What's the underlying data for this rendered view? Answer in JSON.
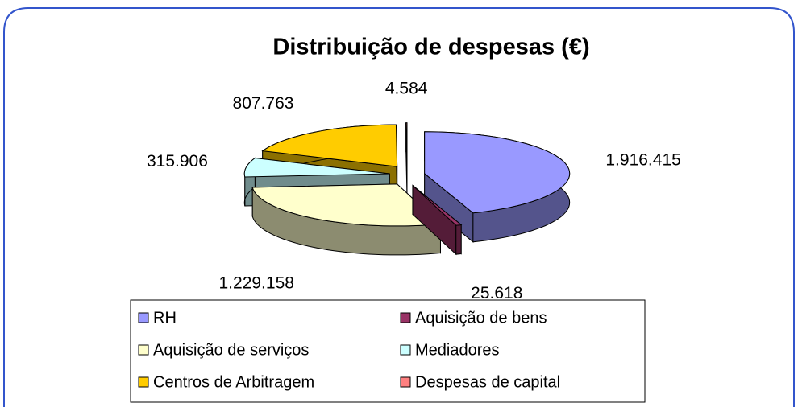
{
  "chart_data": {
    "type": "pie3d",
    "title": "Distribuição de despesas (€)",
    "categories": [
      "RH",
      "Aquisição de bens",
      "Aquisição de serviços",
      "Mediadores",
      "Centros de Arbitragem",
      "Despesas de capital"
    ],
    "values": [
      1916415,
      25618,
      1229158,
      315906,
      807763,
      4584
    ],
    "value_labels": [
      "1.916.415",
      "25.618",
      "1.229.158",
      "315.906",
      "807.763",
      "4.584"
    ],
    "colors": [
      "#9999ff",
      "#993366",
      "#ffffcc",
      "#ccffff",
      "#ffcc00",
      "#ff8080"
    ]
  }
}
